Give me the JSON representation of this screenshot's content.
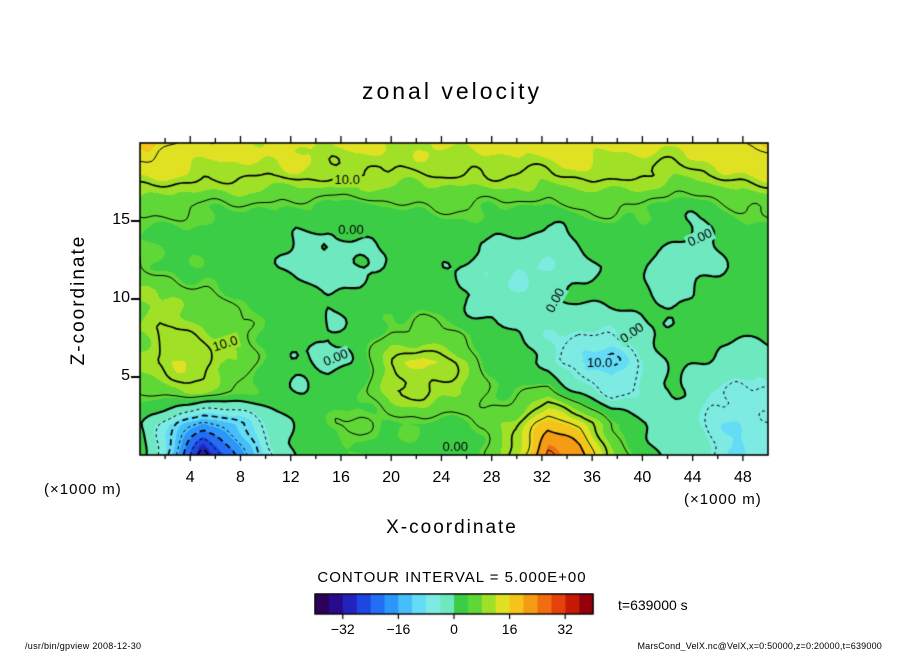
{
  "title": "zonal velocity",
  "axes": {
    "x_label": "X-coordinate",
    "y_label": "Z-coordinate",
    "unit_left": "(×1000 m)",
    "unit_right": "(×1000 m)",
    "x_tick_values": [
      4,
      8,
      12,
      16,
      20,
      24,
      28,
      32,
      36,
      40,
      44,
      48
    ],
    "y_tick_values": [
      5,
      10,
      15
    ]
  },
  "contour_note": "CONTOUR INTERVAL =  5.000E+00",
  "time_label": "t=639000 s",
  "footer_left": "/usr/bin/gpview  2008-12-30",
  "footer_right": "MarsCond_VelX.nc@VelX,x=0:50000,z=0:20000,t=639000",
  "colorbar": {
    "min": -40,
    "max": 40,
    "tick_labels": [
      {
        "value": -32,
        "label": "−32"
      },
      {
        "value": -16,
        "label": "−16"
      },
      {
        "value": 0,
        "label": "0"
      },
      {
        "value": 16,
        "label": "16"
      },
      {
        "value": 32,
        "label": "32"
      }
    ]
  },
  "chart_data": {
    "type": "heatmap",
    "title": "zonal velocity",
    "xlabel": "X-coordinate (×1000 m)",
    "ylabel": "Z-coordinate (×1000 m)",
    "x_range": [
      0,
      50
    ],
    "z_range": [
      0,
      20
    ],
    "contour_interval": 5,
    "fill_min": -40,
    "fill_max": 40,
    "fill_step": 4,
    "noise_amp": 1.1,
    "time_seconds": 639000,
    "x": [
      0,
      2.5,
      5,
      7.5,
      10,
      12.5,
      15,
      17.5,
      20,
      22.5,
      25,
      27.5,
      30,
      32.5,
      35,
      37.5,
      40,
      42.5,
      45,
      47.5,
      50
    ],
    "z": [
      0,
      2,
      4,
      6,
      8,
      10,
      12,
      14,
      16,
      18,
      20
    ],
    "values": [
      [
        2,
        -12,
        -33,
        -20,
        -6,
        0,
        3,
        4,
        3,
        2,
        0,
        4,
        12,
        26,
        22,
        8,
        2,
        0,
        -4,
        -9,
        -7
      ],
      [
        0,
        -8,
        -18,
        -12,
        -4,
        1,
        4,
        5,
        4,
        4,
        2,
        5,
        10,
        18,
        15,
        5,
        0,
        -2,
        -5,
        -8,
        -6
      ],
      [
        5,
        8,
        8,
        5,
        2,
        1,
        1,
        4,
        9,
        11,
        9,
        5,
        4,
        6,
        0,
        -7,
        -3,
        0,
        -3,
        -6,
        -5
      ],
      [
        9,
        12,
        12,
        8,
        3,
        0,
        -2,
        2,
        10,
        13,
        10,
        4,
        1,
        -2,
        -9,
        -11,
        -4,
        1,
        0,
        -3,
        -2
      ],
      [
        8,
        10,
        9,
        6,
        4,
        2,
        0,
        2,
        5,
        6,
        4,
        2,
        0,
        -3,
        -5,
        -4,
        -1,
        2,
        2,
        1,
        1
      ],
      [
        8,
        8,
        6,
        4,
        3,
        2,
        1,
        1,
        2,
        3,
        2,
        -3,
        -3,
        0,
        1,
        2,
        1,
        -1,
        1,
        2,
        3
      ],
      [
        5,
        4,
        3,
        2,
        1,
        -1,
        -3,
        -1,
        1,
        2,
        1,
        -4,
        -4,
        -5,
        -1,
        1,
        1,
        -3,
        -1,
        1,
        2
      ],
      [
        4,
        3,
        2,
        2,
        1,
        0,
        0,
        1,
        1,
        1,
        2,
        1,
        0,
        -2,
        1,
        2,
        2,
        0,
        -1,
        2,
        3
      ],
      [
        6,
        6,
        5,
        5,
        4,
        4,
        3,
        4,
        4,
        5,
        5,
        5,
        4,
        4,
        5,
        6,
        5,
        2,
        2,
        5,
        6
      ],
      [
        13,
        12,
        11,
        11,
        11,
        11,
        11,
        10,
        10,
        10,
        10,
        10,
        10,
        10,
        11,
        11,
        10,
        9,
        10,
        12,
        13
      ],
      [
        17,
        15,
        14,
        13,
        13,
        13,
        12,
        12,
        12,
        12,
        13,
        13,
        13,
        13,
        14,
        13,
        13,
        12,
        13,
        15,
        16
      ]
    ],
    "palette": [
      "#2d005a",
      "#280a8c",
      "#2323be",
      "#1e46e1",
      "#236ef5",
      "#2d96fa",
      "#46befa",
      "#64dcf5",
      "#7debe1",
      "#6ee8be",
      "#3ccd46",
      "#5fd737",
      "#a0e128",
      "#e1e123",
      "#f5c319",
      "#f59b14",
      "#f06e0f",
      "#e6410a",
      "#c81905",
      "#96000a"
    ],
    "contour_labels": [
      {
        "text": "10.0",
        "x": 16.5,
        "z": 17.6,
        "angle": 0
      },
      {
        "text": "0.00",
        "x": 16.8,
        "z": 14.4,
        "angle": 0
      },
      {
        "text": "0.00",
        "x": 44.6,
        "z": 13.9,
        "angle": -25
      },
      {
        "text": "0.00",
        "x": 33.1,
        "z": 9.9,
        "angle": -62
      },
      {
        "text": "10.0",
        "x": 6.8,
        "z": 7.1,
        "angle": -18
      },
      {
        "text": "0.00",
        "x": 15.6,
        "z": 6.2,
        "angle": -22
      },
      {
        "text": "0.00",
        "x": 39.2,
        "z": 7.8,
        "angle": -35
      },
      {
        "text": "10.0",
        "x": 36.6,
        "z": 5.9,
        "angle": 0
      },
      {
        "text": "0.00",
        "x": 25.1,
        "z": 0.5,
        "angle": 0
      }
    ]
  }
}
